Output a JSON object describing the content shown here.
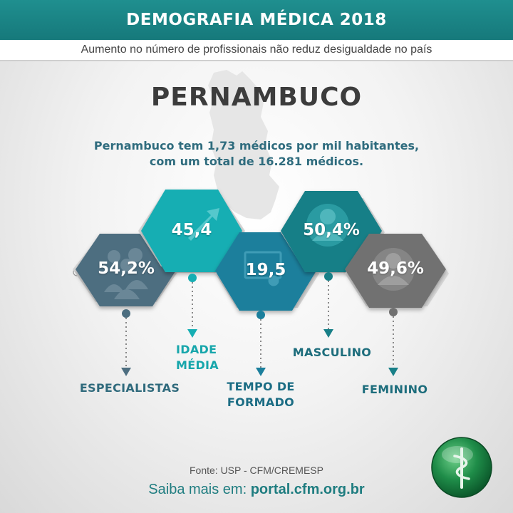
{
  "header": {
    "title": "DEMOGRAFIA MÉDICA 2018"
  },
  "subtitle": "Aumento no número de profissionais não reduz desigualdade no país",
  "state": {
    "name": "PERNAMBUCO"
  },
  "intro": {
    "line1": "Pernambuco tem 1,73 médicos por mil habitantes,",
    "line2": "com um total de 16.281 médicos."
  },
  "stats": [
    {
      "value": "54,2%",
      "label": [
        "ESPECIALISTAS"
      ],
      "color": "#4d6e80",
      "label_color": "#2f6a7c",
      "icon": "group-icon"
    },
    {
      "value": "45,4",
      "label": [
        "IDADE",
        "MÉDIA"
      ],
      "color": "#16aeb3",
      "label_color": "#17a6ab",
      "icon": "trend-arrow-icon"
    },
    {
      "value": "19,5",
      "label": [
        "TEMPO DE",
        "FORMADO"
      ],
      "color": "#1b7f9c",
      "label_color": "#1c6d84",
      "icon": "certificate-icon"
    },
    {
      "value": "50,4%",
      "label": [
        "MASCULINO"
      ],
      "color": "#187f87",
      "label_color": "#1d6d7c",
      "icon": "male-doctor-icon"
    },
    {
      "value": "49,6%",
      "label": [
        "FEMININO"
      ],
      "color": "#717171",
      "label_color": "#1d6d7c",
      "icon": "female-doctor-icon"
    }
  ],
  "footer": {
    "source": "Fonte: USP - CFM/CREMESP",
    "more_prefix": "Saiba mais em: ",
    "more_url": "portal.cfm.org.br"
  },
  "logo": {
    "icon": "cfm-caduceus-logo"
  }
}
